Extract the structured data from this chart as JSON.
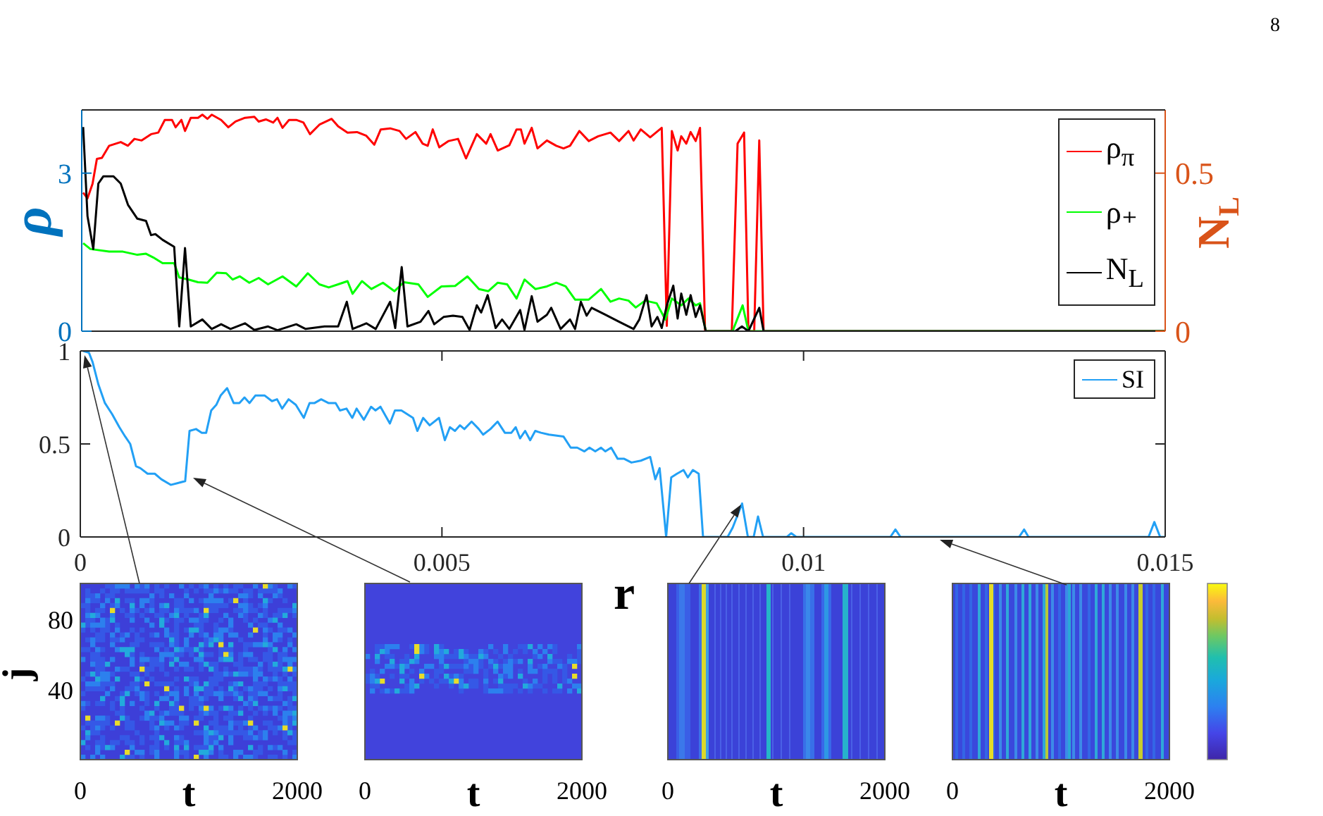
{
  "chart_data": [
    {
      "type": "line",
      "annotations": [
        "8"
      ],
      "ylabel": "ρ",
      "y2label": "N$_{L}$",
      "xlim": [
        0,
        0.015
      ],
      "ylim": [
        0,
        4.2
      ],
      "yticks": [
        0,
        3
      ],
      "y2lim": [
        0,
        0.7
      ],
      "y2ticks": [
        0,
        0.5
      ],
      "tick_labels": "y",
      "legend": "top right",
      "series": [
        {
          "name": "ρ$_{π}$",
          "color": "#ff0000",
          "x": [
            2e-05,
            8e-05,
            0.00015,
            0.00021,
            0.00028,
            0.00038,
            0.00054,
            0.00064,
            0.00073,
            0.00083,
            0.00096,
            0.00106,
            0.00115,
            0.00125,
            0.0013,
            0.00138,
            0.00143,
            0.00151,
            0.00161,
            0.00167,
            0.00174,
            0.0018,
            0.00193,
            0.00203,
            0.00213,
            0.00226,
            0.00239,
            0.00245,
            0.00255,
            0.00265,
            0.00271,
            0.00278,
            0.00287,
            0.00297,
            0.00307,
            0.00316,
            0.00329,
            0.00346,
            0.00355,
            0.00368,
            0.00381,
            0.00394,
            0.00405,
            0.00414,
            0.00427,
            0.0044,
            0.00449,
            0.00462,
            0.00472,
            0.00479,
            0.00486,
            0.00495,
            0.00508,
            0.00521,
            0.00532,
            0.00547,
            0.0056,
            0.00566,
            0.00576,
            0.00592,
            0.00602,
            0.00608,
            0.00613,
            0.00623,
            0.00631,
            0.00644,
            0.00657,
            0.00667,
            0.00676,
            0.00689,
            0.00702,
            0.00715,
            0.00732,
            0.00744,
            0.00757,
            0.00764,
            0.00774,
            0.00787,
            0.00803,
            0.0081,
            0.00817,
            0.00825,
            0.0083,
            0.00837,
            0.00843,
            0.0085,
            0.00856,
            0.00863,
            0.009,
            0.00908,
            0.00917,
            0.00923,
            0.00931,
            0.00938,
            0.00944,
            0.015
          ],
          "values": [
            2.63,
            2.52,
            2.8,
            3.27,
            3.29,
            3.52,
            3.59,
            3.52,
            3.65,
            3.62,
            3.74,
            3.77,
            4.01,
            4.01,
            3.87,
            4.01,
            3.8,
            4.05,
            4.05,
            4.11,
            4.03,
            4.11,
            4.01,
            3.87,
            3.98,
            4.05,
            4.07,
            3.98,
            4.02,
            3.96,
            4.05,
            3.86,
            4.01,
            4.01,
            3.96,
            3.74,
            3.92,
            4.03,
            3.89,
            3.77,
            3.78,
            3.71,
            3.54,
            3.83,
            3.85,
            3.8,
            3.65,
            3.78,
            3.56,
            3.52,
            3.83,
            3.49,
            3.61,
            3.65,
            3.28,
            3.74,
            3.56,
            3.74,
            3.43,
            3.53,
            3.83,
            3.83,
            3.56,
            3.86,
            3.47,
            3.62,
            3.52,
            3.47,
            3.52,
            3.8,
            3.61,
            3.7,
            3.77,
            3.61,
            3.8,
            3.62,
            3.83,
            3.68,
            3.86,
            0.1,
            3.8,
            3.43,
            3.7,
            3.56,
            3.78,
            3.61,
            3.86,
            0,
            0,
            3.56,
            3.77,
            0,
            0,
            3.62,
            0,
            0
          ]
        },
        {
          "name": "ρ₊",
          "color": "#00ff00",
          "x": [
            2e-05,
            0.00012,
            0.00038,
            0.00057,
            0.00077,
            0.00089,
            0.00099,
            0.00112,
            0.00128,
            0.00135,
            0.00148,
            0.00161,
            0.00174,
            0.00187,
            0.002,
            0.00209,
            0.00219,
            0.00232,
            0.00245,
            0.00258,
            0.00278,
            0.00297,
            0.00313,
            0.00329,
            0.00342,
            0.00355,
            0.00368,
            0.00375,
            0.00388,
            0.00401,
            0.00417,
            0.00433,
            0.00446,
            0.00466,
            0.00479,
            0.00498,
            0.00517,
            0.00534,
            0.0055,
            0.00563,
            0.00576,
            0.00589,
            0.00602,
            0.00613,
            0.00628,
            0.00644,
            0.00657,
            0.0067,
            0.00683,
            0.00702,
            0.00719,
            0.00732,
            0.00744,
            0.00757,
            0.00767,
            0.0078,
            0.00796,
            0.00808,
            0.00817,
            0.0083,
            0.0084,
            0.0085,
            0.00856,
            0.00864,
            0.00901,
            0.00915,
            0.00923,
            0.015
          ],
          "values": [
            1.67,
            1.56,
            1.51,
            1.51,
            1.45,
            1.47,
            1.4,
            1.29,
            1.29,
            1.02,
            0.98,
            0.93,
            0.92,
            1.11,
            1.1,
            0.98,
            1.04,
            0.92,
            1.01,
            0.89,
            1.04,
            0.85,
            1.1,
            0.89,
            0.83,
            0.89,
            0.95,
            0.71,
            0.95,
            0.8,
            0.92,
            0.76,
            0.93,
            0.89,
            0.65,
            0.85,
            0.86,
            1.04,
            0.8,
            0.76,
            0.92,
            0.89,
            0.62,
            0.98,
            0.8,
            0.85,
            0.92,
            0.85,
            0.6,
            0.6,
            0.8,
            0.56,
            0.62,
            0.58,
            0.45,
            0.58,
            0.53,
            0.22,
            0.62,
            0.49,
            0.62,
            0.49,
            0.53,
            0,
            0,
            0.49,
            0,
            0
          ]
        },
        {
          "name": "N$_{L}$",
          "color": "#000000",
          "axis": "y2",
          "x": [
            2e-05,
            8e-05,
            0.00016,
            0.00023,
            0.0003,
            0.00044,
            0.00054,
            0.00064,
            0.00077,
            0.00089,
            0.00096,
            0.00102,
            0.00112,
            0.00128,
            0.00135,
            0.00143,
            0.00151,
            0.00167,
            0.0018,
            0.00193,
            0.00206,
            0.00226,
            0.00239,
            0.00258,
            0.00271,
            0.00297,
            0.0031,
            0.00336,
            0.00355,
            0.00367,
            0.00375,
            0.00394,
            0.00407,
            0.00427,
            0.00434,
            0.00443,
            0.00451,
            0.00469,
            0.0048,
            0.00488,
            0.00501,
            0.00514,
            0.00527,
            0.00537,
            0.00547,
            0.00553,
            0.00562,
            0.00573,
            0.00582,
            0.00592,
            0.00607,
            0.00613,
            0.00623,
            0.00631,
            0.00644,
            0.0065,
            0.00663,
            0.00676,
            0.00683,
            0.00691,
            0.00699,
            0.00706,
            0.00725,
            0.00744,
            0.00764,
            0.00772,
            0.00782,
            0.00789,
            0.00797,
            0.00803,
            0.0081,
            0.00819,
            0.00825,
            0.0083,
            0.00837,
            0.00843,
            0.0085,
            0.00856,
            0.00864,
            0.00905,
            0.00914,
            0.00923,
            0.00938,
            0.00944,
            0.015
          ],
          "values": [
            0.646,
            0.364,
            0.26,
            0.467,
            0.49,
            0.49,
            0.467,
            0.4,
            0.356,
            0.349,
            0.304,
            0.307,
            0.289,
            0.267,
            0.015,
            0.263,
            0.015,
            0.037,
            0.007,
            0.022,
            0.007,
            0.025,
            0.004,
            0.015,
            0.003,
            0.022,
            0.007,
            0.015,
            0.015,
            0.093,
            0.007,
            0.025,
            0.007,
            0.093,
            0.01,
            0.203,
            0.015,
            0.03,
            0.064,
            0.022,
            0.045,
            0.049,
            0.045,
            0.004,
            0.082,
            0.059,
            0.114,
            0.01,
            0.037,
            0.007,
            0.067,
            0.004,
            0.111,
            0.03,
            0.052,
            0.074,
            0.007,
            0.037,
            0.007,
            0.093,
            0.049,
            0.074,
            0.052,
            0.03,
            0.007,
            0.037,
            0.114,
            0.015,
            0.045,
            0.01,
            0.082,
            0.144,
            0.04,
            0.119,
            0.052,
            0.114,
            0.045,
            0.082,
            0,
            0,
            0.015,
            0,
            0.074,
            0,
            0
          ]
        }
      ]
    },
    {
      "type": "line",
      "xlabel": "r",
      "xlim": [
        0,
        0.015
      ],
      "xticks": [
        0,
        0.005,
        0.01,
        0.015
      ],
      "ylim": [
        0,
        1
      ],
      "yticks": [
        0,
        0.5,
        1
      ],
      "legend": "top right",
      "series": [
        {
          "name": "SI",
          "color": "#22a0f5",
          "x": [
            4e-05,
            0.00012,
            0.00017,
            0.00025,
            0.00034,
            0.00044,
            0.00054,
            0.00062,
            0.00069,
            0.00077,
            0.00083,
            0.00093,
            0.00103,
            0.00112,
            0.00125,
            0.00135,
            0.00145,
            0.00151,
            0.0016,
            0.00168,
            0.00174,
            0.00181,
            0.00188,
            0.00194,
            0.00203,
            0.00212,
            0.0022,
            0.00227,
            0.00234,
            0.00242,
            0.00255,
            0.00265,
            0.00272,
            0.00279,
            0.00288,
            0.00298,
            0.00309,
            0.00317,
            0.00324,
            0.00333,
            0.00343,
            0.00353,
            0.00359,
            0.00368,
            0.00376,
            0.00382,
            0.00392,
            0.00402,
            0.00408,
            0.00415,
            0.00428,
            0.00435,
            0.00444,
            0.0046,
            0.00466,
            0.00474,
            0.00483,
            0.00496,
            0.00504,
            0.00511,
            0.00518,
            0.00525,
            0.00531,
            0.00541,
            0.00551,
            0.00557,
            0.00567,
            0.00577,
            0.00587,
            0.00596,
            0.00602,
            0.00608,
            0.00615,
            0.00622,
            0.00629,
            0.00637,
            0.00648,
            0.00668,
            0.00678,
            0.00687,
            0.00697,
            0.00704,
            0.00712,
            0.0072,
            0.00726,
            0.00734,
            0.00743,
            0.00752,
            0.00762,
            0.00775,
            0.00788,
            0.00795,
            0.00801,
            0.0081,
            0.00817,
            0.00825,
            0.00834,
            0.0084,
            0.00847,
            0.00855,
            0.00861,
            0.00895,
            0.00902,
            0.00915,
            0.00923,
            0.00931,
            0.00937,
            0.00944,
            0.00977,
            0.00983,
            0.0099,
            0.0112,
            0.01127,
            0.01134,
            0.01298,
            0.01305,
            0.01311,
            0.01477,
            0.01485,
            0.01493,
            0.015
          ],
          "values": [
            1,
            0.99,
            0.94,
            0.82,
            0.72,
            0.66,
            0.59,
            0.54,
            0.5,
            0.38,
            0.37,
            0.34,
            0.34,
            0.31,
            0.28,
            0.29,
            0.3,
            0.57,
            0.58,
            0.56,
            0.56,
            0.68,
            0.71,
            0.76,
            0.8,
            0.72,
            0.72,
            0.75,
            0.72,
            0.76,
            0.76,
            0.73,
            0.74,
            0.69,
            0.74,
            0.71,
            0.64,
            0.72,
            0.72,
            0.74,
            0.72,
            0.72,
            0.68,
            0.69,
            0.64,
            0.69,
            0.63,
            0.7,
            0.68,
            0.7,
            0.61,
            0.68,
            0.68,
            0.64,
            0.57,
            0.64,
            0.6,
            0.64,
            0.52,
            0.59,
            0.57,
            0.6,
            0.58,
            0.62,
            0.58,
            0.55,
            0.58,
            0.62,
            0.56,
            0.56,
            0.59,
            0.53,
            0.57,
            0.52,
            0.57,
            0.56,
            0.55,
            0.54,
            0.48,
            0.48,
            0.46,
            0.48,
            0.46,
            0.48,
            0.46,
            0.48,
            0.42,
            0.42,
            0.4,
            0.41,
            0.43,
            0.31,
            0.37,
            0,
            0.32,
            0.34,
            0.36,
            0.32,
            0.36,
            0.34,
            0,
            0,
            0.05,
            0.18,
            0,
            0,
            0.11,
            0,
            0,
            0.02,
            0,
            0,
            0.04,
            0,
            0,
            0.04,
            0,
            0,
            0.08,
            0,
            0
          ]
        }
      ]
    },
    {
      "type": "other",
      "xlabel": "t",
      "ylabel": "j",
      "annotations": [
        "80",
        "40",
        "0",
        "2000"
      ]
    },
    {
      "type": "other",
      "xlabel": "t",
      "annotations": [
        "0",
        "2000"
      ]
    },
    {
      "type": "other",
      "xlabel": "t",
      "annotations": [
        "0",
        "2000"
      ]
    },
    {
      "type": "other",
      "xlabel": "t",
      "annotations": [
        "0",
        "2000"
      ]
    }
  ]
}
